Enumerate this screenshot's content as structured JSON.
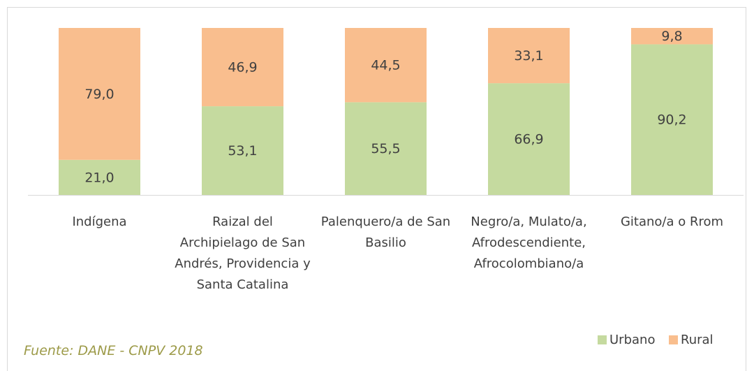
{
  "chart_data": {
    "type": "stacked_bar",
    "categories": [
      "Indígena",
      "Raizal del Archipielago de San Andrés, Providencia y Santa Catalina",
      "Palenquero/a de San Basilio",
      "Negro/a, Mulato/a, Afrodescendiente, Afrocolombiano/a",
      "Gitano/a o Rrom"
    ],
    "series": [
      {
        "name": "Urbano",
        "color": "#c5da9f",
        "values": [
          21.0,
          53.1,
          55.5,
          66.9,
          90.2
        ],
        "value_labels": [
          "21,0",
          "53,1",
          "55,5",
          "66,9",
          "90,2"
        ]
      },
      {
        "name": "Rural",
        "color": "#f9be8e",
        "values": [
          79.0,
          46.9,
          44.5,
          33.1,
          9.8
        ],
        "value_labels": [
          "79,0",
          "46,9",
          "44,5",
          "33,1",
          "9,8"
        ]
      }
    ],
    "ylim": [
      0,
      100
    ],
    "legend": "bottom-right",
    "source": "Fuente: DANE - CNPV 2018"
  }
}
